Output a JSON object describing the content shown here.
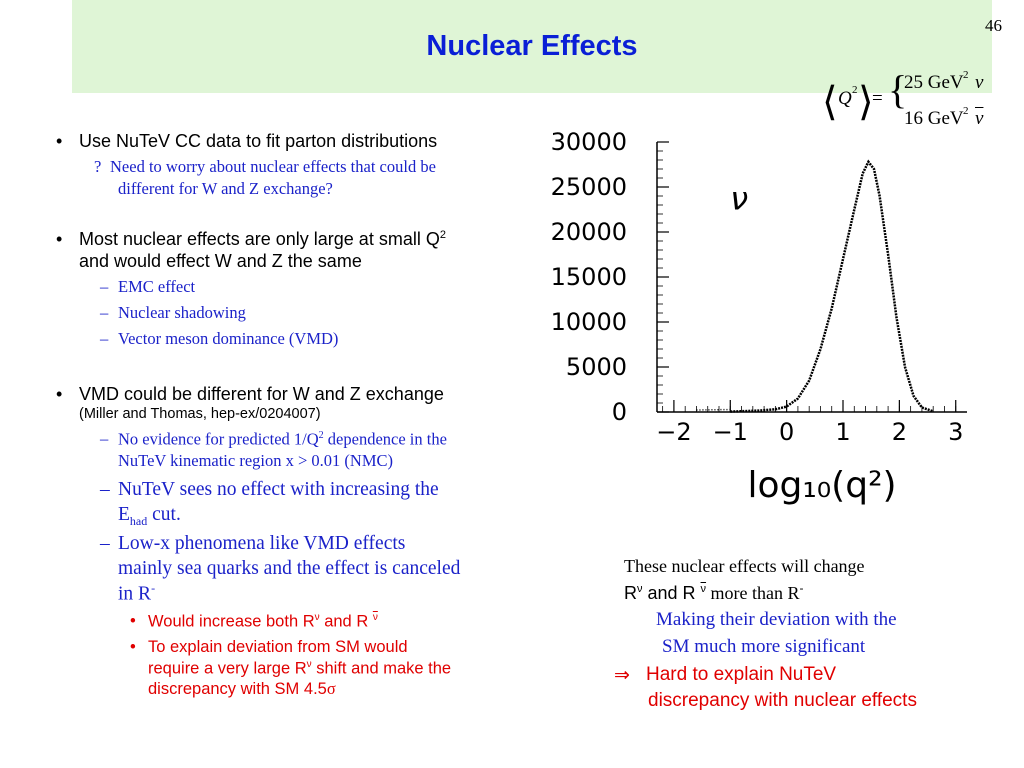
{
  "slide": {
    "title": "Nuclear Effects",
    "page_number": "46"
  },
  "formula": {
    "lhs": "Q",
    "lhs_sup": "2",
    "equals": "=",
    "nu_numer": "25 GeV",
    "nu_numer_sup": "2",
    "nu_symbol": "ν",
    "nubar_denom": "16 GeV",
    "nubar_denom_sup": "2",
    "nubar_symbol": "ν"
  },
  "bullets": {
    "b1": "Use NuTeV CC data to fit parton distributions",
    "b1_sub_marker": "?",
    "b1_sub_line1": "Need to worry about nuclear effects that could be",
    "b1_sub_line2": "different for W and Z exchange?",
    "b2_line1": "Most nuclear effects are only large at small Q",
    "b2_sup": "2",
    "b2_line2": "and would effect W and Z the same",
    "b2_subs": [
      "EMC effect",
      "Nuclear shadowing",
      "Vector meson dominance (VMD)"
    ],
    "b3": "VMD could be different for W and Z exchange",
    "b3_ref": "(Miller and Thomas, hep-ex/0204007)",
    "b3_s1_line1_a": "No evidence for predicted 1/Q",
    "b3_s1_sup": "2",
    "b3_s1_line1_b": " dependence in the",
    "b3_s1_line2": "NuTeV kinematic region x > 0.01 (NMC)",
    "b3_s2_line1": "NuTeV sees no effect with increasing the",
    "b3_s2_E": "E",
    "b3_s2_sub": "had",
    "b3_s2_end": " cut.",
    "b3_s3_line1": "Low-x phenomena like VMD effects",
    "b3_s3_line2": "mainly sea quarks and the effect is canceled",
    "b3_s3_line3": "in R",
    "b3_s3_sup": "-",
    "r1_a": "Would increase both R",
    "r1_sup1": "ν",
    "r1_b": " and R ",
    "r1_sup2": "ν",
    "r2_line1": "To explain deviation from SM would",
    "r2_line2_a": "require a very large R",
    "r2_line2_sup": "ν",
    "r2_line2_b": " shift and make the",
    "r2_line3": "discrepancy with SM 4.5",
    "r2_sigma": "σ",
    "dash": "–"
  },
  "note": {
    "line1": "These nuclear effects will change",
    "line2_a": "R",
    "line2_sup1": "ν",
    "line2_b": " and R ",
    "line2_sup2": "ν",
    "line2_c": " more than R",
    "line2_sup3": "-",
    "line3": "Making their  deviation with the",
    "line4": "SM much more significant",
    "arrow": "⇒",
    "line5": "Hard to explain NuTeV",
    "line6": "discrepancy with nuclear effects"
  },
  "colors": {
    "title": "#0a1fd6",
    "title_band": "#dff5d6",
    "blue_text": "#1b22c9",
    "red_text": "#e00000"
  },
  "chart_data": {
    "type": "line",
    "title": "",
    "xlabel": "log₁₀(q²)",
    "ylabel": "",
    "annotation": "ν",
    "xlim": [
      -2.3,
      3.2
    ],
    "ylim": [
      0,
      30000
    ],
    "x_ticks": [
      -2,
      -1,
      0,
      1,
      2,
      3
    ],
    "x_tick_labels": [
      "−2",
      "−1",
      "0",
      "1",
      "2",
      "3"
    ],
    "y_ticks": [
      0,
      5000,
      10000,
      15000,
      20000,
      25000,
      30000
    ],
    "y_tick_labels": [
      "0",
      "5000",
      "10000",
      "15000",
      "20000",
      "25000",
      "30000"
    ],
    "series": [
      {
        "x": [
          -1.0,
          -0.5,
          -0.2,
          0.0,
          0.2,
          0.4,
          0.6,
          0.8,
          1.0,
          1.2,
          1.35,
          1.45,
          1.55,
          1.65,
          1.8,
          1.95,
          2.1,
          2.25,
          2.4,
          2.6
        ],
        "values": [
          50,
          150,
          300,
          600,
          1500,
          3500,
          7000,
          11500,
          17000,
          22500,
          26500,
          27800,
          27000,
          24000,
          17500,
          10500,
          5000,
          1800,
          500,
          80
        ]
      }
    ]
  }
}
